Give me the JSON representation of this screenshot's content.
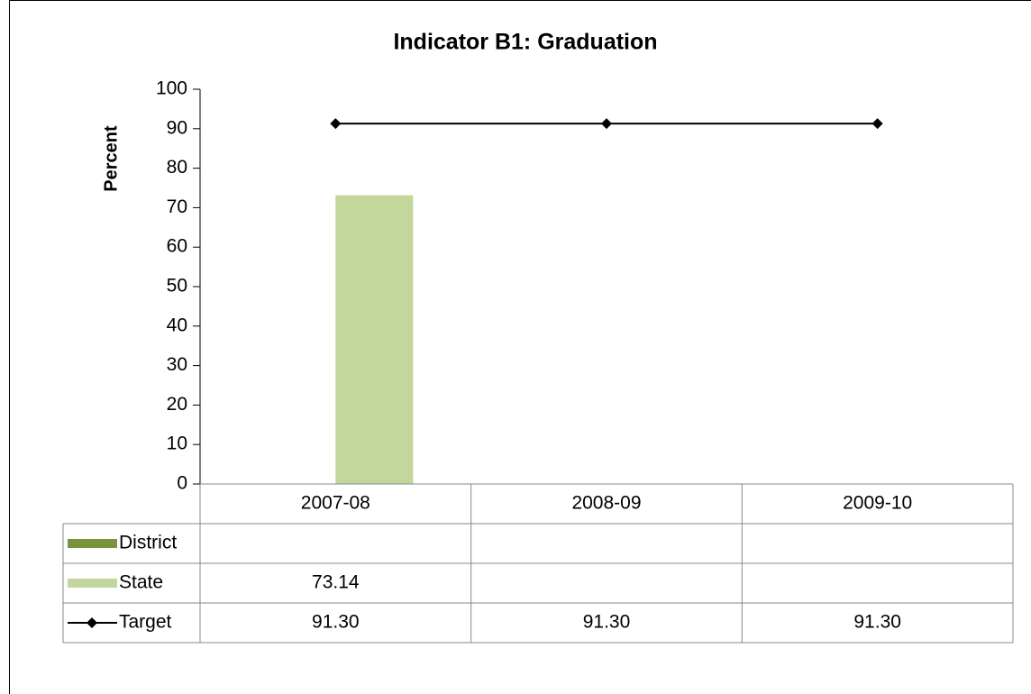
{
  "chart_data": {
    "type": "bar",
    "title": "Indicator B1: Graduation",
    "y_label": "Percent",
    "categories": [
      "2007-08",
      "2008-09",
      "2009-10"
    ],
    "series": [
      {
        "name": "District",
        "type": "bar",
        "color": "#77933c",
        "values": [
          null,
          null,
          null
        ]
      },
      {
        "name": "State",
        "type": "bar",
        "color": "#c3d69b",
        "values": [
          73.14,
          null,
          null
        ]
      },
      {
        "name": "Target",
        "type": "line",
        "color": "#000000",
        "values": [
          91.3,
          91.3,
          91.3
        ],
        "value_labels": [
          "91.30",
          "91.30",
          "91.30"
        ]
      }
    ],
    "ylim": [
      0,
      100
    ],
    "yticks": [
      0,
      10,
      20,
      30,
      40,
      50,
      60,
      70,
      80,
      90,
      100
    ],
    "grid": false,
    "data_table": true
  }
}
